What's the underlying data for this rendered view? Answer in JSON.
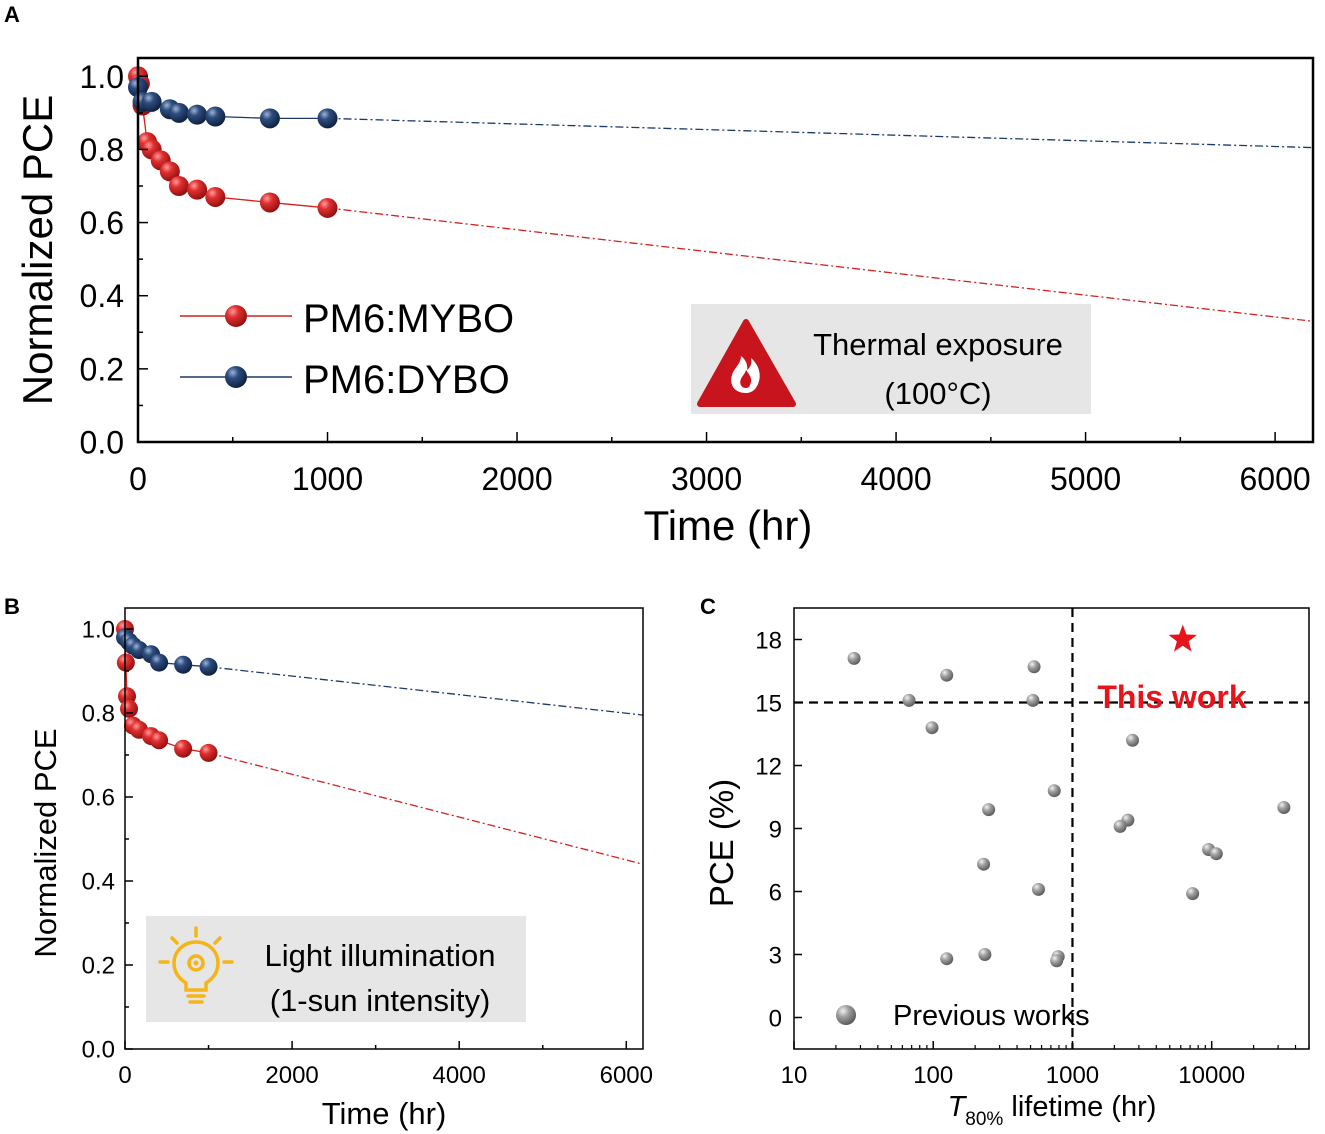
{
  "figure": {
    "panels": [
      {
        "letter": "A"
      },
      {
        "letter": "B"
      },
      {
        "letter": "C"
      }
    ]
  },
  "colors": {
    "mybo": "#d42020",
    "dybo": "#1d3a66",
    "gray_point": "#8c8c8c",
    "this_work": "#e8141c",
    "hazard": "#c8141c",
    "bulb": "#f5b418",
    "box_bg": "#e6e6e6"
  },
  "chart_data": [
    {
      "panel": "A",
      "type": "line",
      "title": "",
      "xlabel": "Time (hr)",
      "ylabel": "Normalized PCE",
      "xlim": [
        0,
        6200
      ],
      "ylim": [
        0,
        1.05
      ],
      "xticks": [
        0,
        1000,
        2000,
        3000,
        4000,
        5000,
        6000
      ],
      "xtick_labels": [
        "0",
        "1000",
        "2000",
        "3000",
        "4000",
        "5000",
        "6000"
      ],
      "yticks": [
        0.0,
        0.2,
        0.4,
        0.6,
        0.8,
        1.0
      ],
      "ytick_labels": [
        "0.0",
        "0.2",
        "0.4",
        "0.6",
        "0.8",
        "1.0"
      ],
      "series": [
        {
          "name": "PM6:MYBO",
          "color": "#d42020",
          "x": [
            0,
            10,
            24,
            48,
            72,
            120,
            168,
            216,
            312,
            408,
            696,
            1000
          ],
          "y": [
            1.0,
            0.98,
            0.92,
            0.82,
            0.8,
            0.77,
            0.74,
            0.7,
            0.69,
            0.67,
            0.655,
            0.64
          ],
          "extrapolation": {
            "x": [
              1000,
              6200
            ],
            "y": [
              0.64,
              0.33
            ]
          }
        },
        {
          "name": "PM6:DYBO",
          "color": "#1d3a66",
          "x": [
            0,
            24,
            72,
            168,
            216,
            312,
            408,
            696,
            1000
          ],
          "y": [
            0.97,
            0.93,
            0.93,
            0.91,
            0.9,
            0.895,
            0.89,
            0.885,
            0.885
          ],
          "extrapolation": {
            "x": [
              1000,
              6200
            ],
            "y": [
              0.885,
              0.805
            ]
          }
        }
      ],
      "legend": {
        "placement": "bottom-left",
        "entries": [
          "PM6:MYBO",
          "PM6:DYBO"
        ]
      },
      "annotation": {
        "line1": "Thermal exposure",
        "line2": "(100°C)",
        "icon": "fire-hazard-icon"
      }
    },
    {
      "panel": "B",
      "type": "line",
      "title": "",
      "xlabel": "Time (hr)",
      "ylabel": "Normalized PCE",
      "xlim": [
        0,
        6200
      ],
      "ylim": [
        0,
        1.05
      ],
      "xticks": [
        0,
        2000,
        4000,
        6000
      ],
      "xtick_labels": [
        "0",
        "2000",
        "4000",
        "6000"
      ],
      "yticks": [
        0.0,
        0.2,
        0.4,
        0.6,
        0.8,
        1.0
      ],
      "ytick_labels": [
        "0.0",
        "0.2",
        "0.4",
        "0.6",
        "0.8",
        "1.0"
      ],
      "series": [
        {
          "name": "PM6:MYBO",
          "color": "#d42020",
          "x": [
            0,
            10,
            24,
            48,
            96,
            168,
            312,
            408,
            696,
            1000
          ],
          "y": [
            1.0,
            0.92,
            0.84,
            0.81,
            0.77,
            0.76,
            0.745,
            0.735,
            0.715,
            0.705
          ],
          "extrapolation": {
            "x": [
              1000,
              6200
            ],
            "y": [
              0.705,
              0.44
            ]
          }
        },
        {
          "name": "PM6:DYBO",
          "color": "#1d3a66",
          "x": [
            0,
            48,
            96,
            168,
            312,
            408,
            696,
            1000
          ],
          "y": [
            0.98,
            0.97,
            0.96,
            0.95,
            0.94,
            0.92,
            0.915,
            0.91
          ],
          "extrapolation": {
            "x": [
              1000,
              6200
            ],
            "y": [
              0.91,
              0.795
            ]
          }
        }
      ],
      "annotation": {
        "line1": "Light illumination",
        "line2": "(1-sun intensity)",
        "icon": "lightbulb-icon"
      }
    },
    {
      "panel": "C",
      "type": "scatter",
      "title": "",
      "xlabel_italic": "T",
      "xlabel_sub": "80%",
      "xlabel_rest": " lifetime (hr)",
      "ylabel": "PCE (%)",
      "xscale": "log",
      "xlim": [
        10,
        50000
      ],
      "ylim": [
        -1.5,
        19.5
      ],
      "xticks": [
        10,
        100,
        1000,
        10000
      ],
      "xtick_labels": [
        "10",
        "100",
        "1000",
        "10000"
      ],
      "yticks": [
        0,
        3,
        6,
        9,
        12,
        15,
        18
      ],
      "ytick_labels": [
        "0",
        "3",
        "6",
        "9",
        "12",
        "15",
        "18"
      ],
      "reference_lines": {
        "x": 1000,
        "y": 15
      },
      "series": [
        {
          "name": "Previous works",
          "color": "#8c8c8c",
          "points": [
            [
              27,
              17.1
            ],
            [
              530,
              16.7
            ],
            [
              125,
              16.3
            ],
            [
              67,
              15.1
            ],
            [
              520,
              15.1
            ],
            [
              98,
              13.8
            ],
            [
              2700,
              13.2
            ],
            [
              740,
              10.8
            ],
            [
              250,
              9.9
            ],
            [
              33000,
              10.0
            ],
            [
              2500,
              9.4
            ],
            [
              2200,
              9.1
            ],
            [
              9500,
              8.0
            ],
            [
              10800,
              7.8
            ],
            [
              230,
              7.3
            ],
            [
              570,
              6.1
            ],
            [
              7300,
              5.9
            ],
            [
              235,
              3.0
            ],
            [
              125,
              2.8
            ],
            [
              790,
              2.9
            ],
            [
              770,
              2.7
            ]
          ]
        },
        {
          "name": "This work",
          "color": "#e8141c",
          "marker": "star",
          "points": [
            [
              6200,
              18.0
            ]
          ]
        }
      ],
      "legend": {
        "placement": "bottom-left",
        "entries": [
          "Previous works"
        ]
      },
      "annotation": {
        "text": "This work"
      }
    }
  ]
}
